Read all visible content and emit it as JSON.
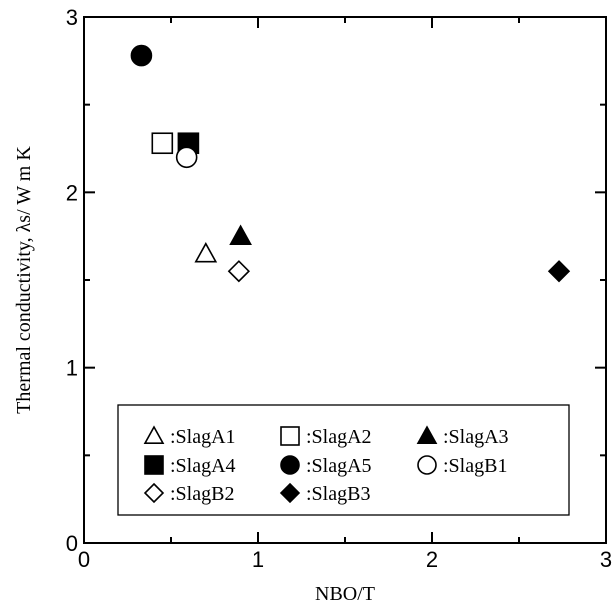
{
  "chart_data": {
    "type": "scatter",
    "xlabel": "NBO/T",
    "ylabel": "Thermal conductivity, λs/ W m K",
    "xlim": [
      0,
      3
    ],
    "ylim": [
      0,
      3
    ],
    "xticks": [
      0,
      1,
      2,
      3
    ],
    "yticks": [
      0,
      1,
      2,
      3
    ],
    "grid": false,
    "legend_position": "bottom-center",
    "series": [
      {
        "name": ":SlagA1",
        "marker": "triangle-open",
        "points": [
          {
            "x": 0.7,
            "y": 1.65
          }
        ]
      },
      {
        "name": ":SlagA2",
        "marker": "square-open",
        "points": [
          {
            "x": 0.45,
            "y": 2.28
          }
        ]
      },
      {
        "name": ":SlagA3",
        "marker": "triangle-filled",
        "points": [
          {
            "x": 0.9,
            "y": 1.75
          }
        ]
      },
      {
        "name": ":SlagA4",
        "marker": "square-filled",
        "points": [
          {
            "x": 0.6,
            "y": 2.28
          }
        ]
      },
      {
        "name": ":SlagA5",
        "marker": "circle-filled",
        "points": [
          {
            "x": 0.33,
            "y": 2.78
          }
        ]
      },
      {
        "name": ":SlagB1",
        "marker": "circle-open",
        "points": [
          {
            "x": 0.59,
            "y": 2.2
          }
        ]
      },
      {
        "name": ":SlagB2",
        "marker": "diamond-open",
        "points": [
          {
            "x": 0.89,
            "y": 1.55
          }
        ]
      },
      {
        "name": ":SlagB3",
        "marker": "diamond-filled",
        "points": [
          {
            "x": 2.73,
            "y": 1.55
          }
        ]
      }
    ]
  }
}
